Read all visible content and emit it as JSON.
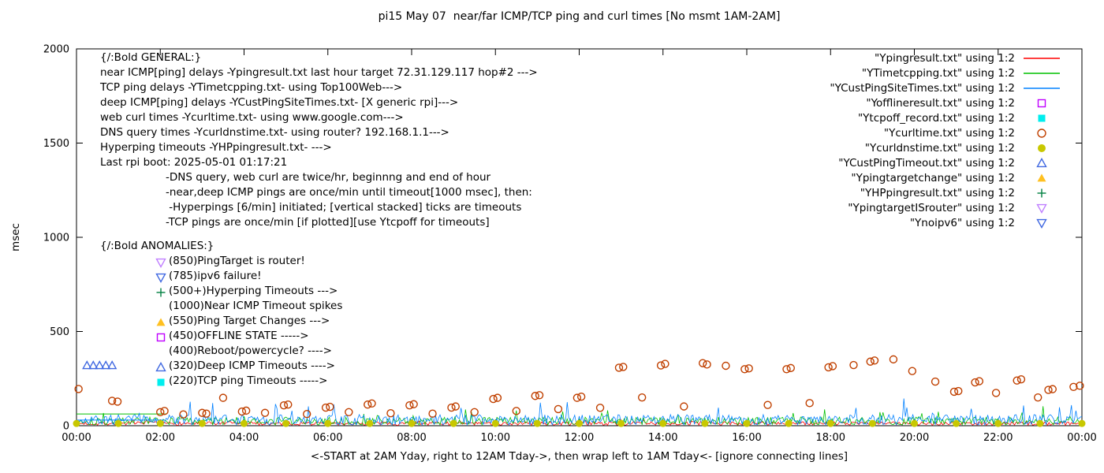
{
  "title": "pi15 May 07  near/far ICMP/TCP ping and curl times [No msmt 1AM-2AM]",
  "ylabel": "msec",
  "xlabel": "<-START at 2AM Yday, right to 12AM Tday->, then wrap left to 1AM Tday<- [ignore connecting lines]",
  "legend": [
    {
      "label": "\"Ypingresult.txt\" using 1:2",
      "marker": "line",
      "color": "#ff0000"
    },
    {
      "label": "\"YTimetcpping.txt\" using 1:2",
      "marker": "line",
      "color": "#00c000"
    },
    {
      "label": "\"YCustPingSiteTimes.txt\" using 1:2",
      "marker": "line",
      "color": "#0080ff"
    },
    {
      "label": "\"Yofflineresult.txt\" using 1:2",
      "marker": "square-open",
      "color": "#c000ff"
    },
    {
      "label": "\"Ytcpoff_record.txt\" using 1:2",
      "marker": "square-filled",
      "color": "#00eeee"
    },
    {
      "label": "\"Ycurltime.txt\" using 1:2",
      "marker": "circle-open",
      "color": "#c04000"
    },
    {
      "label": "\"Ycurldnstime.txt\" using 1:2",
      "marker": "circle-filled",
      "color": "#c8c800"
    },
    {
      "label": "\"YCustPingTimeout.txt\" using 1:2",
      "marker": "triangle-open",
      "color": "#4169e1"
    },
    {
      "label": "\"Ypingtargetchange\" using 1:2",
      "marker": "triangle-filled",
      "color": "#ffc020"
    },
    {
      "label": "\"YHPpingresult.txt\" using 1:2",
      "marker": "plus",
      "color": "#008040"
    },
    {
      "label": "\"YpingtargetISrouter\" using 1:2",
      "marker": "nabla-open",
      "color": "#c080ff"
    },
    {
      "label": "\"Ynoipv6\" using 1:2",
      "marker": "nabla-open",
      "color": "#4169e1"
    }
  ],
  "annotations": {
    "general": {
      "heading": "{/:Bold GENERAL:}",
      "lines": [
        "near ICMP[ping] delays -Ypingresult.txt last hour target 72.31.129.117 hop#2 --->",
        "TCP ping delays -YTimetcpping.txt- using Top100Web--->",
        "deep ICMP[ping] delays -YCustPingSiteTimes.txt- [X generic rpi]--->",
        "web curl times -Ycurltime.txt- using www.google.com--->",
        "DNS query times -Ycurldnstime.txt- using router? 192.168.1.1--->",
        "Hyperping timeouts -YHPpingresult.txt- --->",
        "Last rpi boot: 2025-05-01 01:17:21"
      ],
      "notes": [
        "-DNS query, web curl are twice/hr, beginnng and end of hour",
        "-near,deep ICMP pings are once/min until timeout[1000 msec], then:",
        " -Hyperpings [6/min] initiated; [vertical stacked] ticks are timeouts",
        "-TCP pings are once/min [if plotted][use Ytcpoff for timeouts]"
      ]
    },
    "anomalies": {
      "heading": "{/:Bold ANOMALIES:}",
      "items": [
        {
          "marker": "nabla-open",
          "color": "#c080ff",
          "text": "(850)PingTarget is router!"
        },
        {
          "marker": "nabla-open",
          "color": "#4169e1",
          "text": "(785)ipv6 failure!"
        },
        {
          "marker": "plus",
          "color": "#008040",
          "text": "(500+)Hyperping Timeouts --->"
        },
        {
          "marker": null,
          "color": null,
          "text": "(1000)Near ICMP Timeout spikes"
        },
        {
          "marker": "triangle-filled",
          "color": "#ffc020",
          "text": "(550)Ping Target Changes --->"
        },
        {
          "marker": "square-open",
          "color": "#c000ff",
          "text": "(450)OFFLINE STATE ----->"
        },
        {
          "marker": null,
          "color": null,
          "text": "(400)Reboot/powercycle? ---->"
        },
        {
          "marker": "triangle-open",
          "color": "#4169e1",
          "text": "(320)Deep ICMP Timeouts ---->"
        },
        {
          "marker": "square-filled",
          "color": "#00eeee",
          "text": "(220)TCP ping Timeouts ----->"
        }
      ]
    }
  },
  "chart_data": {
    "type": "line+scatter",
    "title": "pi15 May 07  near/far ICMP/TCP ping and curl times [No msmt 1AM-2AM]",
    "xlabel": "<-START at 2AM Yday, right to 12AM Tday->, then wrap left to 1AM Tday<- [ignore connecting lines]",
    "ylabel": "msec",
    "ylim": [
      0,
      2000
    ],
    "xlim_hours": [
      0,
      24
    ],
    "grid": false,
    "legend_position": "top-right",
    "y_ticks": [
      {
        "value": 0,
        "label": "0"
      },
      {
        "value": 500,
        "label": "500"
      },
      {
        "value": 1000,
        "label": "1000"
      },
      {
        "value": 1500,
        "label": "1500"
      },
      {
        "value": 2000,
        "label": "2000"
      }
    ],
    "x_ticks": [
      {
        "hour": 0,
        "label": "00:00"
      },
      {
        "hour": 2,
        "label": "02:00"
      },
      {
        "hour": 4,
        "label": "04:00"
      },
      {
        "hour": 6,
        "label": "06:00"
      },
      {
        "hour": 8,
        "label": "08:00"
      },
      {
        "hour": 10,
        "label": "10:00"
      },
      {
        "hour": 12,
        "label": "12:00"
      },
      {
        "hour": 14,
        "label": "14:00"
      },
      {
        "hour": 16,
        "label": "16:00"
      },
      {
        "hour": 18,
        "label": "18:00"
      },
      {
        "hour": 20,
        "label": "20:00"
      },
      {
        "hour": 22,
        "label": "22:00"
      },
      {
        "hour": 24,
        "label": "00:00"
      }
    ],
    "series": [
      {
        "name": "Ypingresult.txt",
        "style": "noisy_line",
        "color": "#ff0000",
        "baseline": 2,
        "noise": 20,
        "spike": 25,
        "spike_prob": 0.02,
        "seed": 7
      },
      {
        "name": "YTimetcpping.txt",
        "style": "noisy_line",
        "color": "#00c000",
        "baseline": 4,
        "noise": 42,
        "spike": 65,
        "spike_prob": 0.05,
        "seed": 101,
        "flat_segments": [
          {
            "from": 0,
            "to": 2.15,
            "value": 62
          }
        ]
      },
      {
        "name": "YCustPingSiteTimes.txt",
        "style": "noisy_line",
        "color": "#0080ff",
        "baseline": 4,
        "noise": 55,
        "spike": 95,
        "spike_prob": 0.05,
        "seed": 202,
        "flat_segments": [
          {
            "from": 0,
            "to": 2.1,
            "value": 30
          }
        ]
      },
      {
        "name": "Ycurltime.txt",
        "style": "scatter",
        "marker": "circle-open",
        "color": "#c04000",
        "points": [
          [
            0.05,
            195
          ],
          [
            0.85,
            132
          ],
          [
            0.98,
            128
          ],
          [
            2.0,
            72
          ],
          [
            2.1,
            78
          ],
          [
            2.55,
            60
          ],
          [
            3.0,
            68
          ],
          [
            3.1,
            64
          ],
          [
            3.5,
            148
          ],
          [
            3.95,
            75
          ],
          [
            4.05,
            80
          ],
          [
            4.5,
            68
          ],
          [
            4.95,
            108
          ],
          [
            5.05,
            112
          ],
          [
            5.5,
            62
          ],
          [
            5.95,
            96
          ],
          [
            6.05,
            100
          ],
          [
            6.5,
            72
          ],
          [
            6.95,
            112
          ],
          [
            7.05,
            118
          ],
          [
            7.5,
            66
          ],
          [
            7.95,
            108
          ],
          [
            8.05,
            114
          ],
          [
            8.5,
            64
          ],
          [
            8.95,
            96
          ],
          [
            9.05,
            102
          ],
          [
            9.5,
            72
          ],
          [
            9.95,
            142
          ],
          [
            10.05,
            148
          ],
          [
            10.5,
            78
          ],
          [
            10.95,
            158
          ],
          [
            11.05,
            162
          ],
          [
            11.5,
            88
          ],
          [
            11.95,
            148
          ],
          [
            12.05,
            154
          ],
          [
            12.5,
            95
          ],
          [
            12.95,
            308
          ],
          [
            13.05,
            312
          ],
          [
            13.5,
            150
          ],
          [
            13.95,
            320
          ],
          [
            14.05,
            328
          ],
          [
            14.5,
            102
          ],
          [
            14.95,
            332
          ],
          [
            15.05,
            325
          ],
          [
            15.5,
            318
          ],
          [
            15.95,
            300
          ],
          [
            16.05,
            304
          ],
          [
            16.5,
            110
          ],
          [
            16.95,
            300
          ],
          [
            17.05,
            306
          ],
          [
            17.5,
            120
          ],
          [
            17.95,
            310
          ],
          [
            18.05,
            316
          ],
          [
            18.55,
            322
          ],
          [
            18.95,
            340
          ],
          [
            19.05,
            346
          ],
          [
            19.5,
            352
          ],
          [
            19.95,
            290
          ],
          [
            20.5,
            234
          ],
          [
            20.95,
            180
          ],
          [
            21.05,
            184
          ],
          [
            21.45,
            230
          ],
          [
            21.55,
            236
          ],
          [
            21.95,
            174
          ],
          [
            22.45,
            240
          ],
          [
            22.55,
            246
          ],
          [
            22.95,
            150
          ],
          [
            23.2,
            190
          ],
          [
            23.3,
            194
          ],
          [
            23.8,
            206
          ],
          [
            23.95,
            212
          ]
        ]
      },
      {
        "name": "Ycurldnstime.txt",
        "style": "scatter",
        "marker": "circle-filled",
        "color": "#c8c800",
        "points": [
          [
            0,
            12
          ],
          [
            1,
            12
          ],
          [
            2,
            12
          ],
          [
            3,
            12
          ],
          [
            4,
            12
          ],
          [
            5,
            12
          ],
          [
            6,
            12
          ],
          [
            7,
            12
          ],
          [
            8,
            12
          ],
          [
            9,
            12
          ],
          [
            10,
            12
          ],
          [
            11,
            12
          ],
          [
            12,
            12
          ],
          [
            13,
            12
          ],
          [
            14,
            12
          ],
          [
            15,
            12
          ],
          [
            16,
            12
          ],
          [
            17,
            12
          ],
          [
            18,
            12
          ],
          [
            19,
            12
          ],
          [
            20,
            12
          ],
          [
            21,
            12
          ],
          [
            22,
            12
          ],
          [
            23,
            12
          ],
          [
            24,
            12
          ]
        ]
      },
      {
        "name": "YCustPingTimeout.txt",
        "style": "scatter",
        "marker": "triangle-open",
        "color": "#4169e1",
        "points": [
          [
            0.25,
            320
          ],
          [
            0.4,
            320
          ],
          [
            0.55,
            320
          ],
          [
            0.7,
            320
          ],
          [
            0.85,
            320
          ]
        ]
      }
    ]
  }
}
